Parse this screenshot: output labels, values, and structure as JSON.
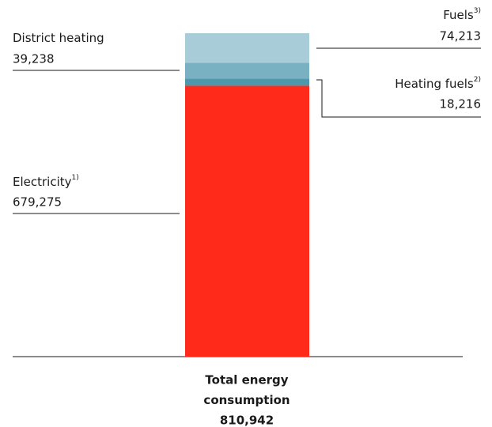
{
  "chart_data": {
    "type": "stacked_bar",
    "series": [
      {
        "name": "Electricity",
        "note": "1)",
        "color": "#ff2a1a",
        "values": [
          679275
        ],
        "value_labels": [
          "679,275"
        ]
      },
      {
        "name": "Heating fuels",
        "note": "2)",
        "color": "#4f97aa",
        "values": [
          18216
        ],
        "value_labels": [
          "18,216"
        ]
      },
      {
        "name": "District heating",
        "color": "#79b1c3",
        "values": [
          39238
        ],
        "value_labels": [
          "39,238"
        ]
      },
      {
        "name": "Fuels",
        "note": "3)",
        "color": "#a8ccd8",
        "values": [
          74213
        ],
        "value_labels": [
          "74,213"
        ]
      }
    ],
    "total": {
      "label": [
        "Total energy",
        "consumption"
      ],
      "value": 810942,
      "value_label": "810,942"
    },
    "ylim": [
      0,
      810942
    ]
  }
}
